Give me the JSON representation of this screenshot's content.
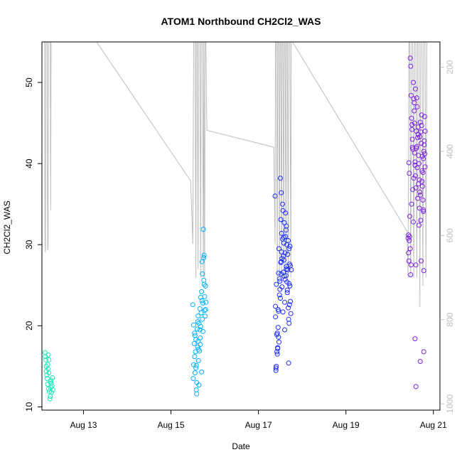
{
  "chart_data": {
    "type": "scatter",
    "title": "ATOM1 Northbound CH2Cl2_WAS",
    "xlabel": "Date",
    "ylabel": "CH2Cl2_WAS",
    "x_tick_labels": [
      "Aug 13",
      "Aug 15",
      "Aug 17",
      "Aug 19",
      "Aug 21"
    ],
    "x_tick_days": [
      13,
      15,
      17,
      19,
      21
    ],
    "xlim_days": [
      12.05,
      21.15
    ],
    "y_ticks": [
      10,
      20,
      30,
      40,
      50
    ],
    "ylim": [
      9.6,
      55
    ],
    "y2_ticks": [
      200,
      400,
      600,
      800,
      1000
    ],
    "y2lim_inverted": [
      1015,
      140
    ],
    "grid": false,
    "legend": "none",
    "colors": {
      "axis": "#000000",
      "secondary_axis": "#bdbdbd",
      "altitude_line": "#bdbdbd",
      "flight_1": "#1de9b6",
      "flight_2": "#00b0ff",
      "flight_3": "#1a2bff",
      "flight_4": "#7a1fe6"
    },
    "series": [
      {
        "key": "flight_1",
        "x_day": [
          12.12,
          12.13,
          12.14,
          12.15,
          12.16,
          12.17,
          12.18,
          12.19,
          12.2,
          12.21,
          12.22,
          12.24,
          12.25,
          12.26,
          12.27,
          12.28,
          12.29,
          12.3,
          12.18,
          12.21,
          12.23,
          12.26,
          12.15,
          12.19,
          12.24
        ],
        "y": [
          16.7,
          16.2,
          15.8,
          14.4,
          13.9,
          13.5,
          12.8,
          14.7,
          12.2,
          15.8,
          11.9,
          11.3,
          12.4,
          13.3,
          11.8,
          12.6,
          13.6,
          12.1,
          15.2,
          14.2,
          11.0,
          12.9,
          15.0,
          16.4,
          13.1
        ]
      },
      {
        "key": "flight_2",
        "x_day": [
          15.5,
          15.51,
          15.52,
          15.53,
          15.54,
          15.55,
          15.56,
          15.57,
          15.58,
          15.59,
          15.6,
          15.61,
          15.62,
          15.63,
          15.64,
          15.65,
          15.66,
          15.67,
          15.68,
          15.69,
          15.7,
          15.71,
          15.72,
          15.73,
          15.74,
          15.75,
          15.76,
          15.77,
          15.78,
          15.79,
          15.8,
          15.52,
          15.55,
          15.58,
          15.61,
          15.64,
          15.67,
          15.7,
          15.73,
          15.76,
          15.79,
          15.54,
          15.59,
          15.63,
          15.68,
          15.72,
          15.75,
          15.77,
          15.57,
          15.62,
          15.66,
          15.71
        ],
        "y": [
          22.6,
          13.5,
          15.2,
          17.8,
          19.1,
          14.2,
          16.8,
          18.3,
          12.1,
          11.6,
          19.6,
          17.4,
          21.2,
          15.7,
          20.3,
          16.9,
          22.1,
          18.5,
          19.9,
          21.6,
          24.2,
          23.1,
          26.4,
          22.8,
          31.9,
          28.4,
          25.1,
          23.6,
          21.2,
          22.0,
          22.9,
          20.1,
          18.8,
          15.1,
          20.5,
          12.7,
          17.7,
          14.3,
          19.3,
          28.7,
          24.9,
          16.2,
          13.0,
          17.1,
          23.5,
          20.8,
          25.6,
          21.9,
          14.8,
          18.1,
          19.5,
          27.9
        ]
      },
      {
        "key": "flight_3",
        "x_day": [
          17.38,
          17.39,
          17.4,
          17.41,
          17.42,
          17.43,
          17.44,
          17.45,
          17.46,
          17.47,
          17.48,
          17.49,
          17.5,
          17.51,
          17.52,
          17.53,
          17.54,
          17.55,
          17.56,
          17.57,
          17.58,
          17.59,
          17.6,
          17.61,
          17.62,
          17.63,
          17.64,
          17.65,
          17.66,
          17.67,
          17.68,
          17.69,
          17.7,
          17.71,
          17.72,
          17.73,
          17.74,
          17.75,
          17.4,
          17.43,
          17.46,
          17.49,
          17.52,
          17.55,
          17.58,
          17.61,
          17.64,
          17.67,
          17.7,
          17.73,
          17.42,
          17.47,
          17.51,
          17.56,
          17.6,
          17.65,
          17.69,
          17.44,
          17.48,
          17.53,
          17.57,
          17.62,
          17.66,
          17.71,
          17.39,
          17.45,
          17.5,
          17.54,
          17.59,
          17.63,
          17.68,
          17.72,
          17.41,
          17.46,
          17.52,
          17.58,
          17.64,
          17.7
        ],
        "y": [
          36.0,
          22.4,
          14.8,
          25.1,
          18.9,
          16.5,
          17.2,
          22.0,
          26.5,
          29.5,
          23.8,
          25.5,
          38.2,
          33.1,
          27.9,
          31.4,
          24.8,
          35.0,
          21.7,
          28.6,
          30.2,
          26.1,
          19.5,
          29.0,
          33.9,
          31.8,
          27.3,
          25.4,
          24.1,
          28.8,
          30.5,
          15.4,
          20.3,
          22.6,
          29.8,
          27.4,
          21.5,
          26.9,
          14.5,
          19.1,
          21.8,
          24.5,
          36.4,
          30.7,
          28.1,
          25.7,
          32.3,
          26.9,
          29.5,
          23.0,
          16.8,
          18.0,
          27.8,
          34.2,
          22.9,
          30.0,
          20.8,
          17.3,
          25.8,
          29.1,
          26.6,
          31.0,
          24.4,
          27.6,
          21.1,
          19.8,
          23.4,
          28.3,
          32.7,
          26.2,
          22.2,
          24.9,
          15.0,
          18.6,
          26.4,
          30.9,
          27.0,
          25.2
        ]
      },
      {
        "key": "flight_4",
        "x_day": [
          20.42,
          20.43,
          20.44,
          20.45,
          20.46,
          20.47,
          20.48,
          20.49,
          20.5,
          20.51,
          20.52,
          20.53,
          20.54,
          20.55,
          20.56,
          20.57,
          20.58,
          20.59,
          20.6,
          20.61,
          20.62,
          20.63,
          20.64,
          20.65,
          20.66,
          20.67,
          20.68,
          20.69,
          20.7,
          20.71,
          20.72,
          20.73,
          20.74,
          20.75,
          20.76,
          20.77,
          20.78,
          20.79,
          20.8,
          20.81,
          20.44,
          20.47,
          20.5,
          20.53,
          20.56,
          20.59,
          20.62,
          20.65,
          20.68,
          20.71,
          20.74,
          20.77,
          20.8,
          20.46,
          20.49,
          20.52,
          20.55,
          20.58,
          20.61,
          20.64,
          20.67,
          20.7,
          20.73,
          20.76,
          20.79,
          20.45,
          20.51,
          20.57,
          20.63,
          20.69,
          20.75,
          20.81,
          20.48,
          20.54,
          20.6,
          20.66,
          20.72,
          20.78,
          20.43,
          20.58,
          20.7,
          20.78,
          20.6,
          20.77
        ],
        "y": [
          30.8,
          31.2,
          40.1,
          38.8,
          33.5,
          53.0,
          52.0,
          48.4,
          45.6,
          44.2,
          43.0,
          41.8,
          50.0,
          48.0,
          46.5,
          45.0,
          40.2,
          38.5,
          37.0,
          44.0,
          42.1,
          39.5,
          43.2,
          44.5,
          41.0,
          40.0,
          38.0,
          36.5,
          45.1,
          43.9,
          42.5,
          46.0,
          39.1,
          37.2,
          35.5,
          34.1,
          41.5,
          42.8,
          45.8,
          44.0,
          28.0,
          29.5,
          35.0,
          36.8,
          47.5,
          49.2,
          48.1,
          43.6,
          34.5,
          33.0,
          37.8,
          40.6,
          41.2,
          31.0,
          27.5,
          42.0,
          38.2,
          39.8,
          41.9,
          35.7,
          32.4,
          36.1,
          44.7,
          38.9,
          42.3,
          30.5,
          44.8,
          41.3,
          47.0,
          43.3,
          40.9,
          39.6,
          26.3,
          32.8,
          27.5,
          37.5,
          28.0,
          26.8,
          29.0,
          18.4,
          15.6,
          16.8,
          12.5,
          34.3
        ]
      }
    ],
    "altitude_series": {
      "name": "Altitude",
      "points": [
        [
          12.11,
          140
        ],
        [
          12.12,
          620
        ],
        [
          12.13,
          640
        ],
        [
          12.14,
          140
        ],
        [
          12.17,
          140
        ],
        [
          12.18,
          635
        ],
        [
          12.19,
          625
        ],
        [
          12.2,
          140
        ],
        [
          12.24,
          140
        ],
        [
          12.25,
          540
        ],
        [
          12.26,
          140
        ],
        [
          12.3,
          140
        ],
        [
          13.3,
          140
        ],
        [
          15.45,
          470
        ],
        [
          15.5,
          620
        ],
        [
          15.52,
          140
        ],
        [
          15.55,
          140
        ],
        [
          15.57,
          700
        ],
        [
          15.58,
          140
        ],
        [
          15.6,
          140
        ],
        [
          15.62,
          680
        ],
        [
          15.63,
          140
        ],
        [
          15.66,
          140
        ],
        [
          15.68,
          700
        ],
        [
          15.69,
          140
        ],
        [
          15.72,
          140
        ],
        [
          15.73,
          480
        ],
        [
          15.74,
          700
        ],
        [
          15.75,
          140
        ],
        [
          15.77,
          700
        ],
        [
          15.78,
          140
        ],
        [
          15.8,
          140
        ],
        [
          15.82,
          350
        ],
        [
          17.35,
          390
        ],
        [
          17.38,
          620
        ],
        [
          17.39,
          140
        ],
        [
          17.41,
          140
        ],
        [
          17.43,
          700
        ],
        [
          17.44,
          140
        ],
        [
          17.46,
          140
        ],
        [
          17.48,
          690
        ],
        [
          17.49,
          140
        ],
        [
          17.51,
          140
        ],
        [
          17.53,
          700
        ],
        [
          17.54,
          140
        ],
        [
          17.56,
          140
        ],
        [
          17.58,
          690
        ],
        [
          17.59,
          140
        ],
        [
          17.61,
          140
        ],
        [
          17.63,
          700
        ],
        [
          17.64,
          140
        ],
        [
          17.66,
          140
        ],
        [
          17.68,
          700
        ],
        [
          17.69,
          140
        ],
        [
          17.72,
          140
        ],
        [
          17.74,
          700
        ],
        [
          17.75,
          140
        ],
        [
          17.78,
          140
        ],
        [
          20.4,
          590
        ],
        [
          20.42,
          700
        ],
        [
          20.44,
          140
        ],
        [
          20.46,
          140
        ],
        [
          20.48,
          700
        ],
        [
          20.5,
          140
        ],
        [
          20.53,
          140
        ],
        [
          20.55,
          700
        ],
        [
          20.57,
          140
        ],
        [
          20.6,
          140
        ],
        [
          20.62,
          700
        ],
        [
          20.64,
          140
        ],
        [
          20.67,
          140
        ],
        [
          20.69,
          770
        ],
        [
          20.71,
          140
        ],
        [
          20.74,
          140
        ],
        [
          20.76,
          720
        ],
        [
          20.78,
          140
        ],
        [
          20.81,
          140
        ],
        [
          20.83,
          700
        ],
        [
          20.85,
          140
        ]
      ]
    }
  }
}
